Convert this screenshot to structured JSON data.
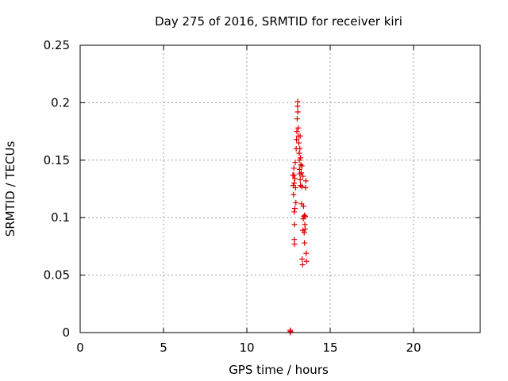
{
  "chart_data": {
    "type": "scatter",
    "title": "Day 275 of 2016, SRMTID for receiver kiri",
    "xlabel": "GPS time / hours",
    "ylabel": "SRMTID / TECUs",
    "xlim": [
      0,
      24
    ],
    "ylim": [
      0,
      0.25
    ],
    "x_ticks": [
      0,
      5,
      10,
      15,
      20
    ],
    "x_tick_labels": [
      "0",
      "5",
      "10",
      "15",
      "20"
    ],
    "y_ticks": [
      0,
      0.05,
      0.1,
      0.15,
      0.2,
      0.25
    ],
    "y_tick_labels": [
      "0",
      "0.05",
      "0.1",
      "0.15",
      "0.2",
      "0.25"
    ],
    "grid": true,
    "marker": "plus",
    "point_color": "#e00000",
    "series": [
      {
        "points": [
          [
            12.6,
            0.0
          ],
          [
            12.62,
            0.001
          ],
          [
            12.6,
            0.002
          ],
          [
            12.76,
            0.137
          ],
          [
            12.78,
            0.128
          ],
          [
            12.8,
            0.12
          ],
          [
            12.82,
            0.143
          ],
          [
            12.84,
            0.105
          ],
          [
            12.86,
            0.094
          ],
          [
            12.85,
            0.081
          ],
          [
            12.86,
            0.077
          ],
          [
            12.88,
            0.134
          ],
          [
            12.9,
            0.148
          ],
          [
            12.92,
            0.126
          ],
          [
            12.94,
            0.113
          ],
          [
            12.96,
            0.16
          ],
          [
            12.98,
            0.168
          ],
          [
            13.0,
            0.175
          ],
          [
            13.02,
            0.186
          ],
          [
            13.04,
            0.197
          ],
          [
            13.05,
            0.201
          ],
          [
            13.06,
            0.192
          ],
          [
            13.08,
            0.178
          ],
          [
            13.1,
            0.171
          ],
          [
            13.12,
            0.165
          ],
          [
            13.14,
            0.156
          ],
          [
            13.15,
            0.15
          ],
          [
            13.16,
            0.142
          ],
          [
            13.18,
            0.138
          ],
          [
            13.2,
            0.133
          ],
          [
            13.22,
            0.128
          ],
          [
            13.24,
            0.146
          ],
          [
            13.26,
            0.139
          ],
          [
            13.28,
            0.112
          ],
          [
            13.3,
            0.127
          ],
          [
            13.32,
            0.064
          ],
          [
            13.34,
            0.059
          ],
          [
            13.36,
            0.089
          ],
          [
            13.38,
            0.099
          ],
          [
            13.4,
            0.11
          ],
          [
            13.42,
            0.101
          ],
          [
            13.44,
            0.087
          ],
          [
            13.46,
            0.078
          ],
          [
            13.48,
            0.094
          ],
          [
            13.5,
            0.101
          ],
          [
            13.52,
            0.126
          ],
          [
            13.54,
            0.132
          ],
          [
            13.56,
            0.069
          ],
          [
            13.58,
            0.062
          ],
          [
            13.2,
            0.171
          ],
          [
            13.18,
            0.16
          ],
          [
            13.22,
            0.152
          ],
          [
            12.82,
            0.137
          ],
          [
            12.84,
            0.13
          ],
          [
            12.88,
            0.108
          ],
          [
            13.3,
            0.145
          ],
          [
            13.36,
            0.136
          ],
          [
            13.46,
            0.102
          ],
          [
            13.5,
            0.09
          ]
        ]
      }
    ]
  }
}
